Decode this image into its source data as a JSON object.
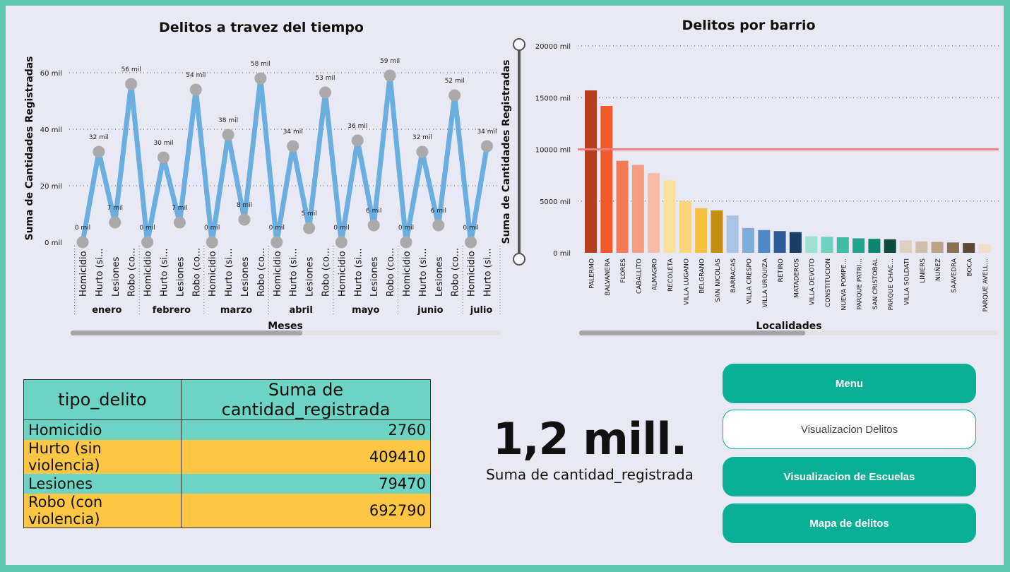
{
  "line_chart": {
    "title": "Delitos a travez del tiempo",
    "ylabel": "Suma de Cantidades Registradas",
    "xlabel": "Meses",
    "y_ticks": [
      "60 mil",
      "40 mil",
      "20 mil",
      "0 mil"
    ]
  },
  "bar_chart": {
    "title": "Delitos por barrio",
    "ylabel": "Suma de Cantidades Registradas",
    "xlabel": "Localidades",
    "y_ticks": [
      "20000 mil",
      "15000 mil",
      "10000 mil",
      "5000 mil",
      "0 mil"
    ]
  },
  "chart_data": [
    {
      "type": "line",
      "title": "Delitos a travez del tiempo",
      "xlabel": "Meses",
      "ylabel": "Suma de Cantidades Registradas",
      "ylim": [
        0,
        60
      ],
      "grid": true,
      "months": [
        "enero",
        "febrero",
        "marzo",
        "abril",
        "mayo",
        "junio",
        "julio"
      ],
      "categories": [
        "Homicidio",
        "Hurto (si...",
        "Lesiones",
        "Robo (co...",
        "Homicidio",
        "Hurto (si...",
        "Lesiones",
        "Robo (co...",
        "Homicidio",
        "Hurto (si...",
        "Lesiones",
        "Robo (co...",
        "Homicidio",
        "Hurto (si...",
        "Lesiones",
        "Robo (co...",
        "Homicidio",
        "Hurto (si...",
        "Lesiones",
        "Robo (co...",
        "Homicidio",
        "Hurto (si...",
        "Lesiones",
        "Robo (co...",
        "Homicidio",
        "Hurto (si..."
      ],
      "values": [
        0,
        32,
        7,
        56,
        0,
        30,
        7,
        54,
        0,
        38,
        8,
        58,
        0,
        34,
        5,
        53,
        0,
        36,
        6,
        59,
        0,
        32,
        6,
        52,
        0,
        34
      ],
      "data_labels": [
        "0 mil",
        "32 mil",
        "7 mil",
        "56 mil",
        "0 mil",
        "30 mil",
        "7 mil",
        "54 mil",
        "0 mil",
        "38 mil",
        "8 mil",
        "58 mil",
        "0 mil",
        "34 mil",
        "5 mil",
        "53 mil",
        "0 mil",
        "36 mil",
        "6 mil",
        "59 mil",
        "0 mil",
        "32 mil",
        "6 mil",
        "52 mil",
        "0 mil",
        "34 mil"
      ],
      "line_color": "#6aafe0",
      "marker_color": "#aaaaaa"
    },
    {
      "type": "bar",
      "title": "Delitos por barrio",
      "xlabel": "Localidades",
      "ylabel": "Suma de Cantidades Registradas",
      "ylim": [
        0,
        20000
      ],
      "grid": true,
      "reference_line": 10000,
      "reference_color": "#f08080",
      "categories": [
        "PALERMO",
        "BALVANERA",
        "FLORES",
        "CABALLITO",
        "ALMAGRO",
        "RECOLETA",
        "VILLA LUGANO",
        "BELGRANO",
        "SAN NICOLAS",
        "BARRACAS",
        "VILLA CRESPO",
        "VILLA URQUIZA",
        "RETIRO",
        "MATADEROS",
        "VILLA DEVOTO",
        "CONSTITUCION",
        "NUEVA POMPE...",
        "PARQUE PATRI...",
        "SAN CRISTOBAL",
        "PARQUE CHAC...",
        "VILLA SOLDATI",
        "LINIERS",
        "NUÑEZ",
        "SAAVEDRA",
        "BOCA",
        "PARQUE AVELL..."
      ],
      "values": [
        15700,
        14200,
        8900,
        8500,
        7700,
        7000,
        5000,
        4300,
        4100,
        3600,
        2400,
        2200,
        2100,
        2000,
        1600,
        1550,
        1500,
        1400,
        1350,
        1300,
        1200,
        1100,
        1050,
        1000,
        950,
        850
      ],
      "colors": [
        "#b53f21",
        "#f2592a",
        "#f27b55",
        "#f49e7f",
        "#f8bca6",
        "#fbe19e",
        "#fbd57a",
        "#f6c13f",
        "#c58c12",
        "#a9c5e6",
        "#7eacdb",
        "#4e88c8",
        "#2d5c9a",
        "#1a3d66",
        "#9be2d2",
        "#6fd2c0",
        "#3fbca3",
        "#1fa58d",
        "#0b8670",
        "#0b4a3e",
        "#ddd0c3",
        "#cfbeaa",
        "#bba383",
        "#8c6e50",
        "#5e4836",
        "#ece0c8"
      ]
    }
  ],
  "table": {
    "headers": [
      "tipo_delito",
      "Suma de cantidad_registrada"
    ],
    "rows": [
      [
        "Homicidio",
        "2760"
      ],
      [
        "Hurto (sin violencia)",
        "409410"
      ],
      [
        "Lesiones",
        "79470"
      ],
      [
        "Robo (con violencia)",
        "692790"
      ]
    ]
  },
  "kpi": {
    "value": "1,2 mill.",
    "label": "Suma de cantidad_registrada"
  },
  "nav": {
    "menu": "Menu",
    "delitos": "Visualizacion Delitos",
    "escuelas": "Visualizacion de Escuelas",
    "mapa": "Mapa de delitos"
  },
  "colors": {
    "accent": "#0ab095",
    "frame": "#5ec7b0",
    "background": "#e9e8f5",
    "table_teal": "#6dd3c2",
    "table_yellow": "#fec643"
  }
}
